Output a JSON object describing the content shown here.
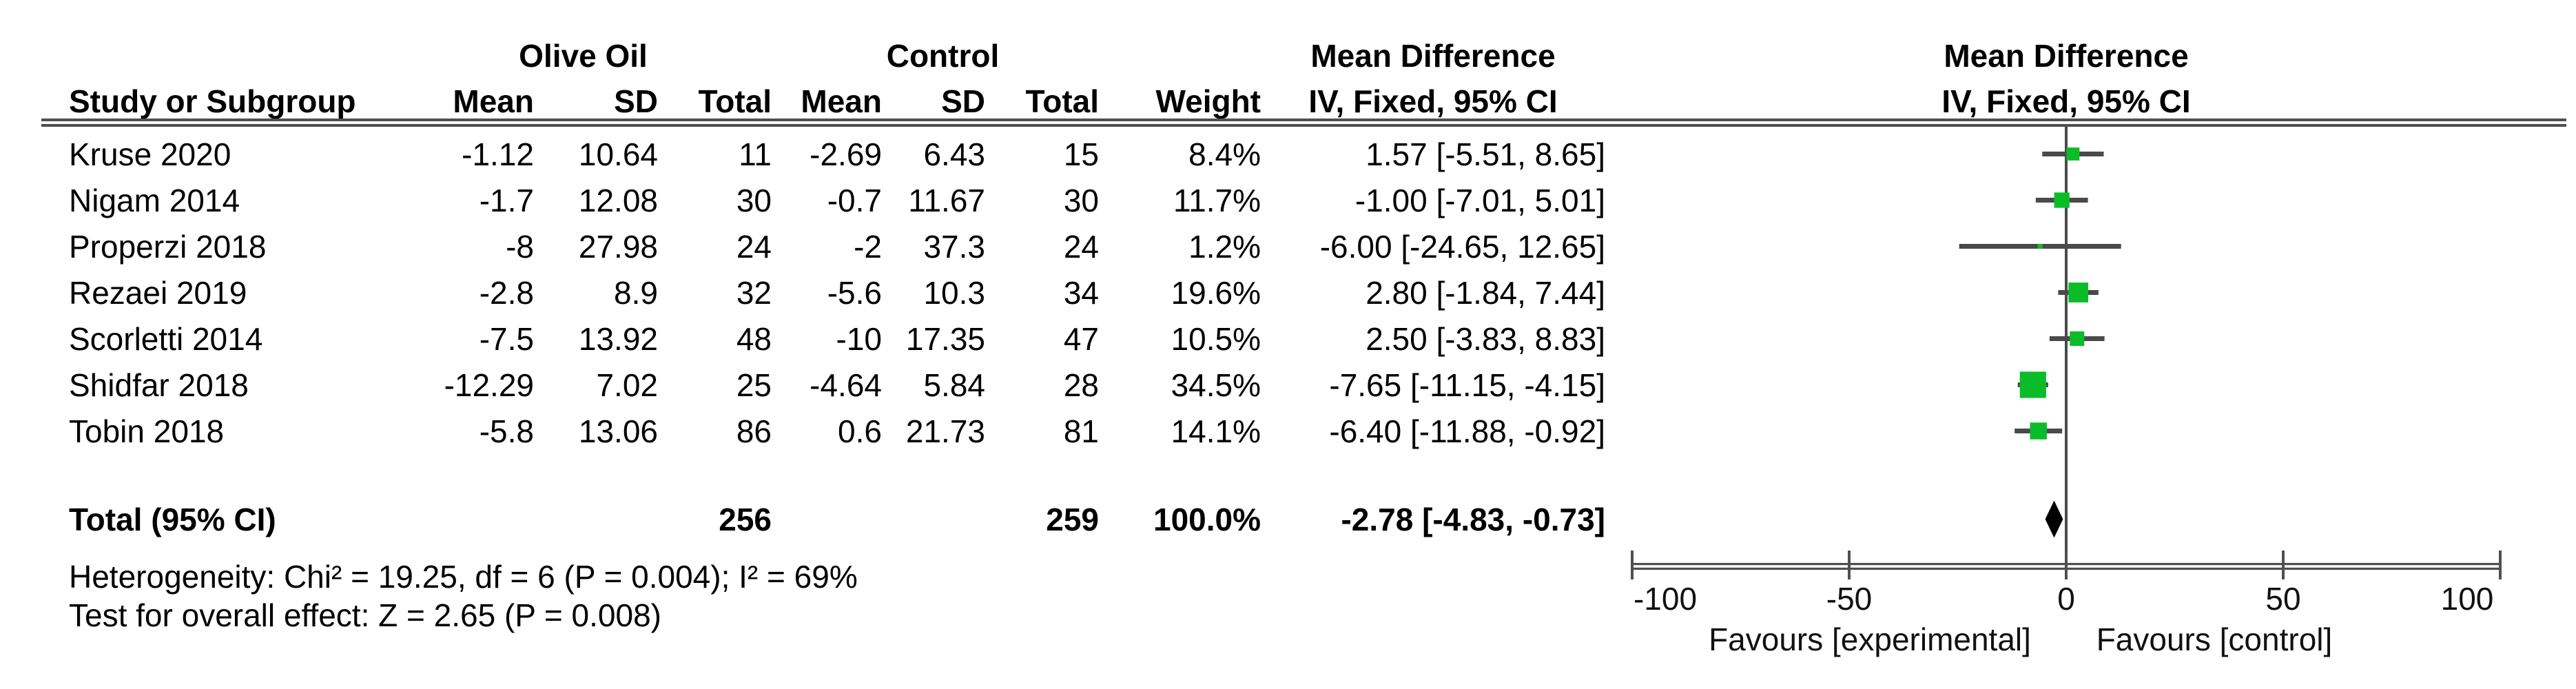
{
  "figure": {
    "header": {
      "group1": "Olive Oil",
      "group2": "Control",
      "study_col": "Study or Subgroup",
      "mean_col": "Mean",
      "sd_col": "SD",
      "total_col": "Total",
      "weight_col": "Weight",
      "effect_col_title": "Mean Difference",
      "effect_col_subtitle": "IV, Fixed, 95% CI",
      "plot_title": "Mean Difference",
      "plot_subtitle": "IV, Fixed, 95% CI"
    },
    "total_row": {
      "label": "Total (95% CI)",
      "total1": "256",
      "total2": "259",
      "weight": "100.0%",
      "ci_text": "-2.78 [-4.83, -0.73]"
    },
    "footnotes": {
      "heterogeneity": "Heterogeneity: Chi² = 19.25, df = 6 (P = 0.004); I² = 69%",
      "overall_effect": "Test for overall effect: Z = 2.65 (P = 0.008)"
    }
  },
  "chart_data": {
    "type": "forest",
    "title": "Mean Difference",
    "effect_measure": "IV, Fixed, 95% CI",
    "axis": {
      "min": -100,
      "max": 100,
      "ticks": [
        -100,
        -50,
        0,
        50,
        100
      ]
    },
    "xlabel_left": "Favours [experimental]",
    "xlabel_right": "Favours [control]",
    "marker_color": "#0abd28",
    "line_color": "#4a4a4a",
    "studies": [
      {
        "study": "Kruse 2020",
        "mean1": "-1.12",
        "sd1": "10.64",
        "total1": "11",
        "mean2": "-2.69",
        "sd2": "6.43",
        "total2": "15",
        "weight": "8.4%",
        "weight_pct": 8.4,
        "md": 1.57,
        "ci_low": -5.51,
        "ci_high": 8.65,
        "ci_text": "1.57 [-5.51, 8.65]"
      },
      {
        "study": "Nigam 2014",
        "mean1": "-1.7",
        "sd1": "12.08",
        "total1": "30",
        "mean2": "-0.7",
        "sd2": "11.67",
        "total2": "30",
        "weight": "11.7%",
        "weight_pct": 11.7,
        "md": -1.0,
        "ci_low": -7.01,
        "ci_high": 5.01,
        "ci_text": "-1.00 [-7.01, 5.01]"
      },
      {
        "study": "Properzi 2018",
        "mean1": "-8",
        "sd1": "27.98",
        "total1": "24",
        "mean2": "-2",
        "sd2": "37.3",
        "total2": "24",
        "weight": "1.2%",
        "weight_pct": 1.2,
        "md": -6.0,
        "ci_low": -24.65,
        "ci_high": 12.65,
        "ci_text": "-6.00 [-24.65, 12.65]"
      },
      {
        "study": "Rezaei 2019",
        "mean1": "-2.8",
        "sd1": "8.9",
        "total1": "32",
        "mean2": "-5.6",
        "sd2": "10.3",
        "total2": "34",
        "weight": "19.6%",
        "weight_pct": 19.6,
        "md": 2.8,
        "ci_low": -1.84,
        "ci_high": 7.44,
        "ci_text": "2.80 [-1.84, 7.44]"
      },
      {
        "study": "Scorletti 2014",
        "mean1": "-7.5",
        "sd1": "13.92",
        "total1": "48",
        "mean2": "-10",
        "sd2": "17.35",
        "total2": "47",
        "weight": "10.5%",
        "weight_pct": 10.5,
        "md": 2.5,
        "ci_low": -3.83,
        "ci_high": 8.83,
        "ci_text": "2.50 [-3.83, 8.83]"
      },
      {
        "study": "Shidfar 2018",
        "mean1": "-12.29",
        "sd1": "7.02",
        "total1": "25",
        "mean2": "-4.64",
        "sd2": "5.84",
        "total2": "28",
        "weight": "34.5%",
        "weight_pct": 34.5,
        "md": -7.65,
        "ci_low": -11.15,
        "ci_high": -4.15,
        "ci_text": "-7.65 [-11.15, -4.15]"
      },
      {
        "study": "Tobin 2018",
        "mean1": "-5.8",
        "sd1": "13.06",
        "total1": "86",
        "mean2": "0.6",
        "sd2": "21.73",
        "total2": "81",
        "weight": "14.1%",
        "weight_pct": 14.1,
        "md": -6.4,
        "ci_low": -11.88,
        "ci_high": -0.92,
        "ci_text": "-6.40 [-11.88, -0.92]"
      }
    ],
    "total": {
      "md": -2.78,
      "ci_low": -4.83,
      "ci_high": -0.73
    }
  }
}
